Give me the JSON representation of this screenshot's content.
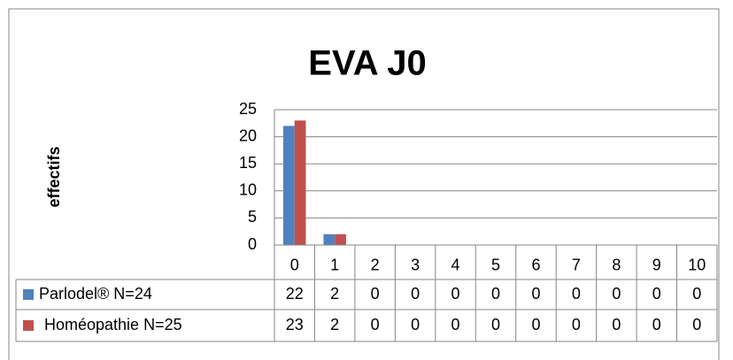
{
  "chart_data": {
    "type": "bar",
    "title": "EVA J0",
    "y_label": "effectifs",
    "categories": [
      "0",
      "1",
      "2",
      "3",
      "4",
      "5",
      "6",
      "7",
      "8",
      "9",
      "10"
    ],
    "series": [
      {
        "name": "Parlodel® N=24",
        "color": "#4f81bd",
        "values": [
          22,
          2,
          0,
          0,
          0,
          0,
          0,
          0,
          0,
          0,
          0
        ]
      },
      {
        "name": "Homéopathie N=25",
        "color": "#c0504d",
        "values": [
          23,
          2,
          0,
          0,
          0,
          0,
          0,
          0,
          0,
          0,
          0
        ]
      }
    ],
    "ylim": [
      0,
      25
    ],
    "yticks": [
      0,
      5,
      10,
      15,
      20,
      25
    ],
    "grid": true,
    "data_table": true
  }
}
